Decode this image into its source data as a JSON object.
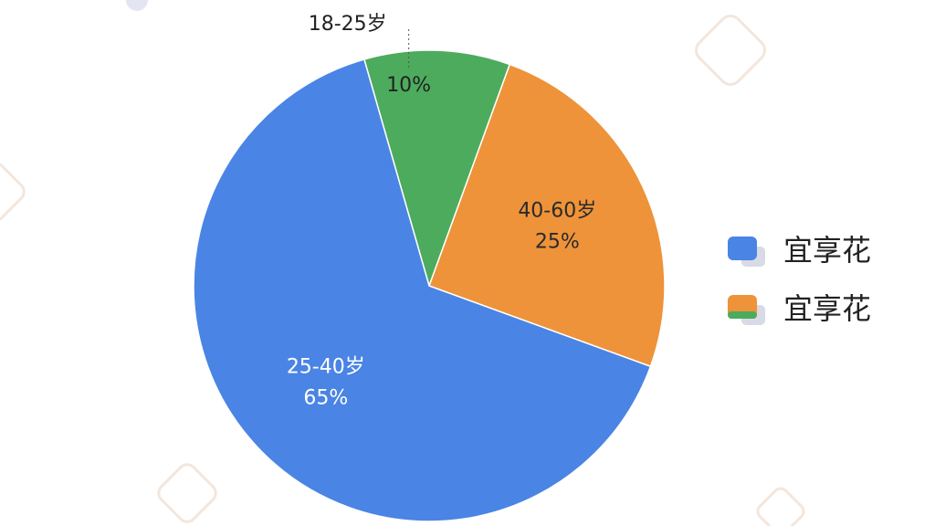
{
  "chart_data": {
    "type": "pie",
    "categories": [
      "18-25岁",
      "40-60岁",
      "25-40岁"
    ],
    "values": [
      10,
      25,
      65
    ],
    "value_labels": [
      "10%",
      "25%",
      "65%"
    ],
    "colors": [
      "#4dab5d",
      "#ee9339",
      "#4a84e4"
    ],
    "legend_labels": [
      "宜享花",
      "宜享花"
    ]
  }
}
